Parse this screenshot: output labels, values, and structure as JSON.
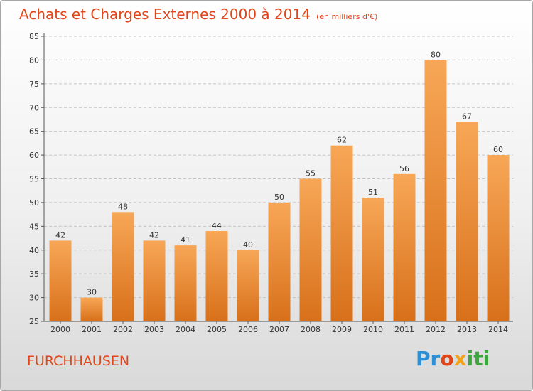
{
  "header": {
    "title": "Achats et Charges Externes 2000 à 2014",
    "unit": "(en milliers d'€)"
  },
  "footer": {
    "commune": "FURCHHAUSEN",
    "logo_letters": [
      "Pr",
      "o",
      "x",
      "iti"
    ]
  },
  "colors": {
    "accent": "#e0461a",
    "bar_top": "#f7a757",
    "bar_bottom": "#d8701a"
  },
  "chart_data": {
    "type": "bar",
    "title": "Achats et Charges Externes 2000 à 2014",
    "subtitle": "(en milliers d'€)",
    "categories": [
      "2000",
      "2001",
      "2002",
      "2003",
      "2004",
      "2005",
      "2006",
      "2007",
      "2008",
      "2009",
      "2010",
      "2011",
      "2012",
      "2013",
      "2014"
    ],
    "values": [
      42,
      30,
      48,
      42,
      41,
      44,
      40,
      50,
      55,
      62,
      51,
      56,
      80,
      67,
      60
    ],
    "ylim": [
      25,
      85
    ],
    "yticks": [
      25,
      30,
      35,
      40,
      45,
      50,
      55,
      60,
      65,
      70,
      75,
      80,
      85
    ],
    "grid": true,
    "legend": "none"
  }
}
